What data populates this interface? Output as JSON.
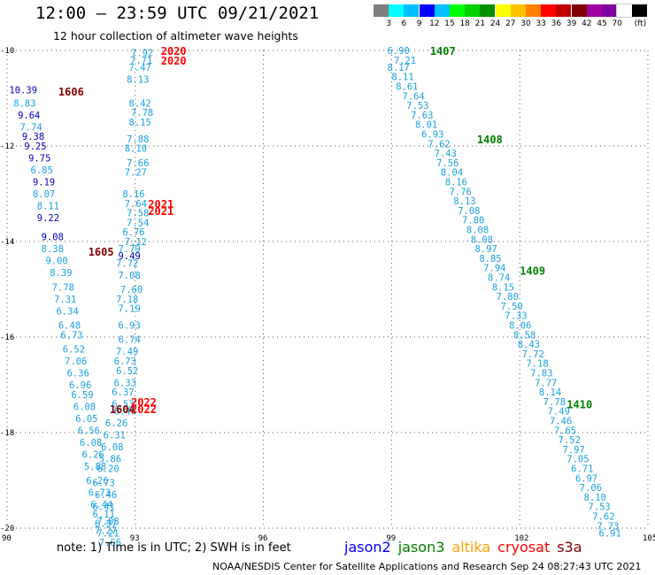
{
  "header": {
    "title": "12:00 – 23:59 UTC 09/21/2021",
    "subtitle": "12 hour collection of altimeter wave heights"
  },
  "legend_scale": {
    "unit": "(ft)",
    "colors": [
      "#7f7f7f",
      "#00ffff",
      "#00bfff",
      "#0000ff",
      "#00c0ff",
      "#00ff00",
      "#00d000",
      "#009000",
      "#ffff00",
      "#ffc000",
      "#ff8000",
      "#ff0000",
      "#c00000",
      "#800000",
      "#a000a0",
      "#8000a0",
      "#ffffff",
      "#000000"
    ],
    "labels": [
      "3",
      "6",
      "9",
      "12",
      "15",
      "18",
      "21",
      "24",
      "27",
      "30",
      "33",
      "36",
      "39",
      "42",
      "45",
      "70"
    ]
  },
  "note": "note:  1) Time is in UTC;  2) SWH is in feet",
  "satellites": [
    {
      "name": "jason2",
      "color": "#0000ff"
    },
    {
      "name": "jason3",
      "color": "#008000"
    },
    {
      "name": "altika",
      "color": "#ffa000"
    },
    {
      "name": "cryosat",
      "color": "#ff0000"
    },
    {
      "name": "s3a",
      "color": "#800000"
    }
  ],
  "footer": "NOAA/NESDIS Center for Satellite Applications and Research     Sep 24 08:27:43 UTC 2021",
  "chart_data": {
    "type": "scatter",
    "title": "",
    "xlabel": "",
    "ylabel": "",
    "xlim": [
      90,
      105
    ],
    "ylim": [
      -20,
      -10
    ],
    "xticks": [
      90,
      93,
      96,
      99,
      102,
      105
    ],
    "yticks": [
      -10,
      -12,
      -14,
      -16,
      -18,
      -20
    ],
    "grid": "dotted",
    "tick_color": "#000000",
    "value_colors": {
      "light": "#1aa0e0",
      "dark": "#0000c0"
    },
    "track_labels": [
      {
        "label": "1606",
        "x": 91.2,
        "y": -10.85,
        "color": "#800000"
      },
      {
        "label": "1605",
        "x": 91.9,
        "y": -14.2,
        "color": "#800000"
      },
      {
        "label": "1604",
        "x": 92.4,
        "y": -17.5,
        "color": "#800000"
      },
      {
        "label": "2020",
        "x": 93.6,
        "y": -10.0,
        "color": "#ff0000"
      },
      {
        "label": "2020",
        "x": 93.6,
        "y": -10.2,
        "color": "#ff0000"
      },
      {
        "label": "2021",
        "x": 93.3,
        "y": -13.2,
        "color": "#ff0000"
      },
      {
        "label": "2021",
        "x": 93.3,
        "y": -13.35,
        "color": "#ff0000"
      },
      {
        "label": "2022",
        "x": 92.9,
        "y": -17.35,
        "color": "#ff0000"
      },
      {
        "label": "2022",
        "x": 92.9,
        "y": -17.5,
        "color": "#ff0000"
      },
      {
        "label": "1407",
        "x": 99.9,
        "y": -10.0,
        "color": "#008000"
      },
      {
        "label": "1408",
        "x": 101.0,
        "y": -11.85,
        "color": "#008000"
      },
      {
        "label": "1409",
        "x": 102.0,
        "y": -14.6,
        "color": "#008000"
      },
      {
        "label": "1410",
        "x": 103.1,
        "y": -17.4,
        "color": "#008000"
      }
    ],
    "tracks": [
      {
        "name": "jason2-a",
        "color": "dark",
        "points": [
          {
            "x": 90.05,
            "y": -10.82,
            "v": 10.39
          },
          {
            "x": 90.25,
            "y": -11.35,
            "v": 9.64
          },
          {
            "x": 90.35,
            "y": -11.8,
            "v": 9.38
          },
          {
            "x": 90.4,
            "y": -12.0,
            "v": 9.25
          },
          {
            "x": 90.5,
            "y": -12.25,
            "v": 9.75
          },
          {
            "x": 90.6,
            "y": -12.75,
            "v": 9.19
          },
          {
            "x": 90.7,
            "y": -13.5,
            "v": 9.22
          },
          {
            "x": 90.8,
            "y": -13.9,
            "v": 9.08
          }
        ]
      },
      {
        "name": "jason2-b",
        "color": "dark",
        "points": [
          {
            "x": 92.6,
            "y": -14.3,
            "v": 9.49
          }
        ]
      },
      {
        "name": "s3a-1606",
        "color": "light",
        "points": [
          {
            "x": 90.15,
            "y": -11.1,
            "v": 8.83
          },
          {
            "x": 90.3,
            "y": -11.6,
            "v": 7.74
          },
          {
            "x": 90.55,
            "y": -12.5,
            "v": 6.85
          },
          {
            "x": 90.6,
            "y": -13.0,
            "v": 8.07
          },
          {
            "x": 90.7,
            "y": -13.25,
            "v": 8.11
          },
          {
            "x": 90.8,
            "y": -14.15,
            "v": 8.38
          },
          {
            "x": 90.9,
            "y": -14.4,
            "v": 9.0
          },
          {
            "x": 91.0,
            "y": -14.65,
            "v": 8.39
          },
          {
            "x": 91.05,
            "y": -14.95,
            "v": 7.78
          },
          {
            "x": 91.1,
            "y": -15.2,
            "v": 7.31
          },
          {
            "x": 91.15,
            "y": -15.45,
            "v": 6.34
          },
          {
            "x": 91.2,
            "y": -15.75,
            "v": 6.48
          },
          {
            "x": 91.25,
            "y": -15.95,
            "v": 6.73
          },
          {
            "x": 91.3,
            "y": -16.25,
            "v": 6.52
          },
          {
            "x": 91.35,
            "y": -16.5,
            "v": 7.06
          },
          {
            "x": 91.4,
            "y": -16.75,
            "v": 6.36
          },
          {
            "x": 91.45,
            "y": -17.0,
            "v": 6.96
          },
          {
            "x": 91.5,
            "y": -17.2,
            "v": 6.59
          },
          {
            "x": 91.55,
            "y": -17.45,
            "v": 6.08
          }
        ]
      },
      {
        "name": "s3a-1605",
        "color": "light",
        "points": [
          {
            "x": 91.6,
            "y": -17.7,
            "v": 6.05
          },
          {
            "x": 91.65,
            "y": -17.95,
            "v": 6.56
          },
          {
            "x": 91.7,
            "y": -18.2,
            "v": 6.08
          },
          {
            "x": 91.75,
            "y": -18.45,
            "v": 6.26
          },
          {
            "x": 91.8,
            "y": -18.7,
            "v": 5.88
          },
          {
            "x": 91.85,
            "y": -19.0,
            "v": 6.26
          },
          {
            "x": 91.9,
            "y": -19.25,
            "v": 6.73
          },
          {
            "x": 91.95,
            "y": -19.5,
            "v": 6.44
          },
          {
            "x": 92.0,
            "y": -19.7,
            "v": 6.11
          },
          {
            "x": 92.05,
            "y": -19.9,
            "v": 6.97
          },
          {
            "x": 92.1,
            "y": -20.1,
            "v": 7.21
          },
          {
            "x": 92.15,
            "y": -20.3,
            "v": 7.66
          }
        ]
      },
      {
        "name": "cryosat-2020",
        "color": "light",
        "points": [
          {
            "x": 92.9,
            "y": -10.05,
            "v": 7.92
          },
          {
            "x": 92.88,
            "y": -10.2,
            "v": 7.71
          },
          {
            "x": 92.85,
            "y": -10.35,
            "v": 7.47
          },
          {
            "x": 92.8,
            "y": -10.6,
            "v": 8.13
          },
          {
            "x": 92.85,
            "y": -11.1,
            "v": 8.42
          },
          {
            "x": 92.9,
            "y": -11.3,
            "v": 7.78
          },
          {
            "x": 92.85,
            "y": -11.5,
            "v": 8.15
          },
          {
            "x": 92.8,
            "y": -11.85,
            "v": 7.88
          },
          {
            "x": 92.75,
            "y": -12.05,
            "v": 8.1
          },
          {
            "x": 92.8,
            "y": -12.35,
            "v": 7.66
          },
          {
            "x": 92.75,
            "y": -12.55,
            "v": 7.27
          },
          {
            "x": 92.7,
            "y": -13.0,
            "v": 8.16
          },
          {
            "x": 92.75,
            "y": -13.2,
            "v": 7.64
          },
          {
            "x": 92.8,
            "y": -13.4,
            "v": 7.58
          },
          {
            "x": 92.8,
            "y": -13.6,
            "v": 7.54
          },
          {
            "x": 92.7,
            "y": -13.8,
            "v": 6.76
          },
          {
            "x": 92.75,
            "y": -14.0,
            "v": 7.12
          }
        ]
      },
      {
        "name": "cryosat-2021",
        "color": "light",
        "points": [
          {
            "x": 92.6,
            "y": -14.15,
            "v": 7.79
          },
          {
            "x": 92.55,
            "y": -14.45,
            "v": 7.72
          },
          {
            "x": 92.6,
            "y": -14.7,
            "v": 7.08
          },
          {
            "x": 92.65,
            "y": -15.0,
            "v": 7.6
          },
          {
            "x": 92.55,
            "y": -15.2,
            "v": 7.18
          },
          {
            "x": 92.6,
            "y": -15.4,
            "v": 7.19
          },
          {
            "x": 92.6,
            "y": -15.75,
            "v": 6.93
          },
          {
            "x": 92.6,
            "y": -16.05,
            "v": 6.74
          },
          {
            "x": 92.55,
            "y": -16.3,
            "v": 7.49
          },
          {
            "x": 92.5,
            "y": -16.5,
            "v": 6.73
          },
          {
            "x": 92.55,
            "y": -16.7,
            "v": 6.52
          },
          {
            "x": 92.5,
            "y": -16.95,
            "v": 6.33
          },
          {
            "x": 92.45,
            "y": -17.15,
            "v": 6.37
          },
          {
            "x": 92.45,
            "y": -17.4,
            "v": 6.53
          },
          {
            "x": 92.5,
            "y": -17.55,
            "v": 6.46
          },
          {
            "x": 92.3,
            "y": -17.8,
            "v": 6.26
          },
          {
            "x": 92.25,
            "y": -18.05,
            "v": 6.31
          },
          {
            "x": 92.2,
            "y": -18.3,
            "v": 6.08
          },
          {
            "x": 92.15,
            "y": -18.55,
            "v": 5.86
          },
          {
            "x": 92.1,
            "y": -18.75,
            "v": 6.2
          },
          {
            "x": 92.0,
            "y": -19.05,
            "v": 6.73
          },
          {
            "x": 92.05,
            "y": -19.3,
            "v": 6.46
          },
          {
            "x": 92.0,
            "y": -19.55,
            "v": 6.41
          },
          {
            "x": 92.1,
            "y": -19.85,
            "v": 7.08
          },
          {
            "x": 92.05,
            "y": -20.05,
            "v": 7.27
          }
        ]
      },
      {
        "name": "jason3",
        "color": "light",
        "points": [
          {
            "x": 98.9,
            "y": -10.0,
            "v": 6.9
          },
          {
            "x": 99.05,
            "y": -10.2,
            "v": 7.21
          },
          {
            "x": 98.9,
            "y": -10.35,
            "v": 8.17
          },
          {
            "x": 99.0,
            "y": -10.55,
            "v": 8.11
          },
          {
            "x": 99.1,
            "y": -10.75,
            "v": 8.61
          },
          {
            "x": 99.25,
            "y": -10.95,
            "v": 7.64
          },
          {
            "x": 99.35,
            "y": -11.15,
            "v": 7.53
          },
          {
            "x": 99.45,
            "y": -11.35,
            "v": 7.63
          },
          {
            "x": 99.55,
            "y": -11.55,
            "v": 8.01
          },
          {
            "x": 99.7,
            "y": -11.75,
            "v": 6.93
          },
          {
            "x": 99.85,
            "y": -11.95,
            "v": 7.62
          },
          {
            "x": 100.0,
            "y": -12.15,
            "v": 7.43
          },
          {
            "x": 100.05,
            "y": -12.35,
            "v": 7.56
          },
          {
            "x": 100.15,
            "y": -12.55,
            "v": 8.04
          },
          {
            "x": 100.25,
            "y": -12.75,
            "v": 8.16
          },
          {
            "x": 100.35,
            "y": -12.95,
            "v": 7.76
          },
          {
            "x": 100.45,
            "y": -13.15,
            "v": 8.13
          },
          {
            "x": 100.55,
            "y": -13.35,
            "v": 7.08
          },
          {
            "x": 100.65,
            "y": -13.55,
            "v": 7.8
          },
          {
            "x": 100.75,
            "y": -13.75,
            "v": 8.08
          },
          {
            "x": 100.85,
            "y": -13.95,
            "v": 8.08
          },
          {
            "x": 100.95,
            "y": -14.15,
            "v": 8.97
          },
          {
            "x": 101.05,
            "y": -14.35,
            "v": 8.85
          },
          {
            "x": 101.15,
            "y": -14.55,
            "v": 7.94
          },
          {
            "x": 101.25,
            "y": -14.75,
            "v": 8.74
          },
          {
            "x": 101.35,
            "y": -14.95,
            "v": 8.15
          },
          {
            "x": 101.45,
            "y": -15.15,
            "v": 7.8
          },
          {
            "x": 101.55,
            "y": -15.35,
            "v": 7.5
          },
          {
            "x": 101.65,
            "y": -15.55,
            "v": 7.33
          },
          {
            "x": 101.75,
            "y": -15.75,
            "v": 8.06
          },
          {
            "x": 101.85,
            "y": -15.95,
            "v": 8.58
          },
          {
            "x": 101.95,
            "y": -16.15,
            "v": 8.43
          },
          {
            "x": 102.05,
            "y": -16.35,
            "v": 7.72
          },
          {
            "x": 102.15,
            "y": -16.55,
            "v": 7.18
          },
          {
            "x": 102.25,
            "y": -16.75,
            "v": 7.83
          },
          {
            "x": 102.35,
            "y": -16.95,
            "v": 7.77
          },
          {
            "x": 102.45,
            "y": -17.15,
            "v": 8.14
          },
          {
            "x": 102.55,
            "y": -17.35,
            "v": 7.78
          },
          {
            "x": 102.65,
            "y": -17.55,
            "v": 7.49
          },
          {
            "x": 102.7,
            "y": -17.75,
            "v": 7.46
          },
          {
            "x": 102.8,
            "y": -17.95,
            "v": 7.65
          },
          {
            "x": 102.9,
            "y": -18.15,
            "v": 7.52
          },
          {
            "x": 103.0,
            "y": -18.35,
            "v": 7.97
          },
          {
            "x": 103.1,
            "y": -18.55,
            "v": 7.05
          },
          {
            "x": 103.2,
            "y": -18.75,
            "v": 6.71
          },
          {
            "x": 103.3,
            "y": -18.95,
            "v": 6.97
          },
          {
            "x": 103.4,
            "y": -19.15,
            "v": 7.06
          },
          {
            "x": 103.5,
            "y": -19.35,
            "v": 8.1
          },
          {
            "x": 103.6,
            "y": -19.55,
            "v": 7.53
          },
          {
            "x": 103.7,
            "y": -19.75,
            "v": 7.62
          },
          {
            "x": 103.8,
            "y": -19.95,
            "v": 7.73
          },
          {
            "x": 103.85,
            "y": -20.1,
            "v": 6.91
          }
        ]
      }
    ]
  }
}
